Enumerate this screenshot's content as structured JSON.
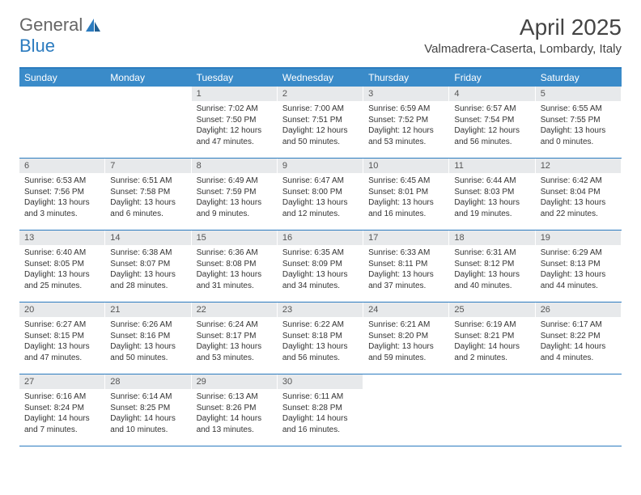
{
  "brand": {
    "part1": "General",
    "part2": "Blue"
  },
  "title": "April 2025",
  "location": "Valmadrera-Caserta, Lombardy, Italy",
  "colors": {
    "header_bg": "#3a8bc9",
    "border": "#2b7bbf",
    "daynum_bg": "#e7e9eb",
    "text": "#333333"
  },
  "weekdays": [
    "Sunday",
    "Monday",
    "Tuesday",
    "Wednesday",
    "Thursday",
    "Friday",
    "Saturday"
  ],
  "weeks": [
    [
      null,
      null,
      {
        "n": "1",
        "sunrise": "Sunrise: 7:02 AM",
        "sunset": "Sunset: 7:50 PM",
        "daylight": "Daylight: 12 hours and 47 minutes."
      },
      {
        "n": "2",
        "sunrise": "Sunrise: 7:00 AM",
        "sunset": "Sunset: 7:51 PM",
        "daylight": "Daylight: 12 hours and 50 minutes."
      },
      {
        "n": "3",
        "sunrise": "Sunrise: 6:59 AM",
        "sunset": "Sunset: 7:52 PM",
        "daylight": "Daylight: 12 hours and 53 minutes."
      },
      {
        "n": "4",
        "sunrise": "Sunrise: 6:57 AM",
        "sunset": "Sunset: 7:54 PM",
        "daylight": "Daylight: 12 hours and 56 minutes."
      },
      {
        "n": "5",
        "sunrise": "Sunrise: 6:55 AM",
        "sunset": "Sunset: 7:55 PM",
        "daylight": "Daylight: 13 hours and 0 minutes."
      }
    ],
    [
      {
        "n": "6",
        "sunrise": "Sunrise: 6:53 AM",
        "sunset": "Sunset: 7:56 PM",
        "daylight": "Daylight: 13 hours and 3 minutes."
      },
      {
        "n": "7",
        "sunrise": "Sunrise: 6:51 AM",
        "sunset": "Sunset: 7:58 PM",
        "daylight": "Daylight: 13 hours and 6 minutes."
      },
      {
        "n": "8",
        "sunrise": "Sunrise: 6:49 AM",
        "sunset": "Sunset: 7:59 PM",
        "daylight": "Daylight: 13 hours and 9 minutes."
      },
      {
        "n": "9",
        "sunrise": "Sunrise: 6:47 AM",
        "sunset": "Sunset: 8:00 PM",
        "daylight": "Daylight: 13 hours and 12 minutes."
      },
      {
        "n": "10",
        "sunrise": "Sunrise: 6:45 AM",
        "sunset": "Sunset: 8:01 PM",
        "daylight": "Daylight: 13 hours and 16 minutes."
      },
      {
        "n": "11",
        "sunrise": "Sunrise: 6:44 AM",
        "sunset": "Sunset: 8:03 PM",
        "daylight": "Daylight: 13 hours and 19 minutes."
      },
      {
        "n": "12",
        "sunrise": "Sunrise: 6:42 AM",
        "sunset": "Sunset: 8:04 PM",
        "daylight": "Daylight: 13 hours and 22 minutes."
      }
    ],
    [
      {
        "n": "13",
        "sunrise": "Sunrise: 6:40 AM",
        "sunset": "Sunset: 8:05 PM",
        "daylight": "Daylight: 13 hours and 25 minutes."
      },
      {
        "n": "14",
        "sunrise": "Sunrise: 6:38 AM",
        "sunset": "Sunset: 8:07 PM",
        "daylight": "Daylight: 13 hours and 28 minutes."
      },
      {
        "n": "15",
        "sunrise": "Sunrise: 6:36 AM",
        "sunset": "Sunset: 8:08 PM",
        "daylight": "Daylight: 13 hours and 31 minutes."
      },
      {
        "n": "16",
        "sunrise": "Sunrise: 6:35 AM",
        "sunset": "Sunset: 8:09 PM",
        "daylight": "Daylight: 13 hours and 34 minutes."
      },
      {
        "n": "17",
        "sunrise": "Sunrise: 6:33 AM",
        "sunset": "Sunset: 8:11 PM",
        "daylight": "Daylight: 13 hours and 37 minutes."
      },
      {
        "n": "18",
        "sunrise": "Sunrise: 6:31 AM",
        "sunset": "Sunset: 8:12 PM",
        "daylight": "Daylight: 13 hours and 40 minutes."
      },
      {
        "n": "19",
        "sunrise": "Sunrise: 6:29 AM",
        "sunset": "Sunset: 8:13 PM",
        "daylight": "Daylight: 13 hours and 44 minutes."
      }
    ],
    [
      {
        "n": "20",
        "sunrise": "Sunrise: 6:27 AM",
        "sunset": "Sunset: 8:15 PM",
        "daylight": "Daylight: 13 hours and 47 minutes."
      },
      {
        "n": "21",
        "sunrise": "Sunrise: 6:26 AM",
        "sunset": "Sunset: 8:16 PM",
        "daylight": "Daylight: 13 hours and 50 minutes."
      },
      {
        "n": "22",
        "sunrise": "Sunrise: 6:24 AM",
        "sunset": "Sunset: 8:17 PM",
        "daylight": "Daylight: 13 hours and 53 minutes."
      },
      {
        "n": "23",
        "sunrise": "Sunrise: 6:22 AM",
        "sunset": "Sunset: 8:18 PM",
        "daylight": "Daylight: 13 hours and 56 minutes."
      },
      {
        "n": "24",
        "sunrise": "Sunrise: 6:21 AM",
        "sunset": "Sunset: 8:20 PM",
        "daylight": "Daylight: 13 hours and 59 minutes."
      },
      {
        "n": "25",
        "sunrise": "Sunrise: 6:19 AM",
        "sunset": "Sunset: 8:21 PM",
        "daylight": "Daylight: 14 hours and 2 minutes."
      },
      {
        "n": "26",
        "sunrise": "Sunrise: 6:17 AM",
        "sunset": "Sunset: 8:22 PM",
        "daylight": "Daylight: 14 hours and 4 minutes."
      }
    ],
    [
      {
        "n": "27",
        "sunrise": "Sunrise: 6:16 AM",
        "sunset": "Sunset: 8:24 PM",
        "daylight": "Daylight: 14 hours and 7 minutes."
      },
      {
        "n": "28",
        "sunrise": "Sunrise: 6:14 AM",
        "sunset": "Sunset: 8:25 PM",
        "daylight": "Daylight: 14 hours and 10 minutes."
      },
      {
        "n": "29",
        "sunrise": "Sunrise: 6:13 AM",
        "sunset": "Sunset: 8:26 PM",
        "daylight": "Daylight: 14 hours and 13 minutes."
      },
      {
        "n": "30",
        "sunrise": "Sunrise: 6:11 AM",
        "sunset": "Sunset: 8:28 PM",
        "daylight": "Daylight: 14 hours and 16 minutes."
      },
      null,
      null,
      null
    ]
  ]
}
